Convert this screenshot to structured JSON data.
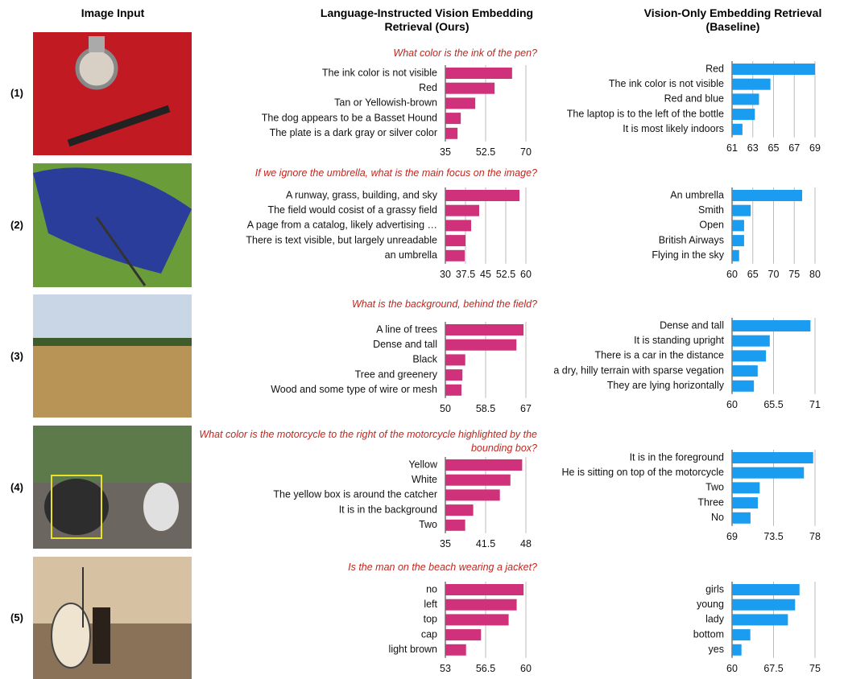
{
  "headers": [
    "Image Input",
    "Language-Instructed Vision Embedding Retrieval (Ours)",
    "Vision-Only Embedding Retrieval (Baseline)"
  ],
  "row_labels": [
    "(1)",
    "(2)",
    "(3)",
    "(4)",
    "(5)"
  ],
  "chart_data": [
    {
      "type": "bar",
      "orientation": "horizontal",
      "title": "What color is the ink of the pen?",
      "categories": [
        "The ink color is not visible",
        "Red",
        "Tan or Yellowish-brown",
        "The dog appears to be a Basset Hound",
        "The plate is a dark gray or silver color"
      ],
      "values": [
        64,
        56.4,
        48,
        41.7,
        40.3
      ],
      "color": "#d0317b",
      "xlim": [
        35,
        70
      ],
      "xticks": [
        35,
        52.5,
        70
      ],
      "grid": true
    },
    {
      "type": "bar",
      "orientation": "horizontal",
      "categories": [
        "Red",
        "The ink color is not visible",
        "Red and blue",
        "The laptop is to the left of the bottle",
        "It is most likely indoors"
      ],
      "values": [
        69,
        64.7,
        63.6,
        63.2,
        62
      ],
      "color": "#1a9cf0",
      "xlim": [
        61,
        69
      ],
      "xticks": [
        61,
        63,
        65,
        67,
        69
      ],
      "grid": true
    },
    {
      "type": "bar",
      "orientation": "horizontal",
      "title": "If we ignore the umbrella, what is the main focus on the image?",
      "categories": [
        "A runway, grass, building, and sky",
        "The field would cosist of a grassy field",
        "A page from a catalog, likely advertising …",
        "There is text visible, but largely unreadable",
        "an umbrella"
      ],
      "values": [
        57.6,
        42.6,
        39.6,
        37.5,
        37.2
      ],
      "color": "#d0317b",
      "xlim": [
        30,
        60
      ],
      "xticks": [
        30,
        37.5,
        45,
        52.5,
        60
      ],
      "grid": true
    },
    {
      "type": "bar",
      "orientation": "horizontal",
      "categories": [
        "An umbrella",
        "Smith",
        "Open",
        "British Airways",
        "Flying in the sky"
      ],
      "values": [
        76.9,
        64.5,
        62.9,
        62.9,
        61.7
      ],
      "color": "#1a9cf0",
      "xlim": [
        60,
        80
      ],
      "xticks": [
        60,
        65,
        70,
        75,
        80
      ],
      "grid": true
    },
    {
      "type": "bar",
      "orientation": "horizontal",
      "title": "What is the background, behind the field?",
      "categories": [
        "A line of trees",
        "Dense and tall",
        "Black",
        "Tree and greenery",
        "Wood and some type of wire or mesh"
      ],
      "values": [
        66.5,
        65,
        54.2,
        53.6,
        53.4
      ],
      "color": "#d0317b",
      "xlim": [
        50,
        67
      ],
      "xticks": [
        50,
        58.5,
        67
      ],
      "grid": true
    },
    {
      "type": "bar",
      "orientation": "horizontal",
      "categories": [
        "Dense and tall",
        "It is standing upright",
        "There is a car in the distance",
        "a dry, hilly terrain with sparse vegation",
        "They are lying horizontally"
      ],
      "values": [
        70.4,
        65,
        64.5,
        63.4,
        62.9
      ],
      "color": "#1a9cf0",
      "xlim": [
        60,
        71
      ],
      "xticks": [
        60,
        65.5,
        71
      ],
      "grid": true
    },
    {
      "type": "bar",
      "orientation": "horizontal",
      "title": "What color is the motorcycle to the right of the motorcycle highlighted by the bounding box?",
      "categories": [
        "Yellow",
        "White",
        "The yellow box  is around the catcher",
        "It is in the background",
        "Two"
      ],
      "values": [
        47.4,
        45.5,
        43.8,
        39.5,
        38.2
      ],
      "color": "#d0317b",
      "xlim": [
        35,
        48
      ],
      "xticks": [
        35,
        41.5,
        48
      ],
      "grid": true
    },
    {
      "type": "bar",
      "orientation": "horizontal",
      "categories": [
        "It is in the foreground",
        "He is sitting on top of the motorcycle",
        "Two",
        "Three",
        "No"
      ],
      "values": [
        77.8,
        76.8,
        72,
        71.8,
        71
      ],
      "color": "#1a9cf0",
      "xlim": [
        69,
        78
      ],
      "xticks": [
        69,
        73.5,
        78
      ],
      "grid": true
    },
    {
      "type": "bar",
      "orientation": "horizontal",
      "title": "Is the man on the beach wearing a jacket?",
      "categories": [
        "no",
        "left",
        "top",
        "cap",
        "light brown"
      ],
      "values": [
        59.8,
        59.2,
        58.5,
        56.1,
        54.8
      ],
      "color": "#d0317b",
      "xlim": [
        53,
        60
      ],
      "xticks": [
        53,
        56.5,
        60
      ],
      "grid": true
    },
    {
      "type": "bar",
      "orientation": "horizontal",
      "categories": [
        "girls",
        "young",
        "lady",
        "bottom",
        "yes"
      ],
      "values": [
        72.2,
        71.4,
        70.1,
        63.3,
        61.7
      ],
      "color": "#1a9cf0",
      "xlim": [
        60,
        75
      ],
      "xticks": [
        60,
        67.5,
        75
      ],
      "grid": true
    }
  ]
}
